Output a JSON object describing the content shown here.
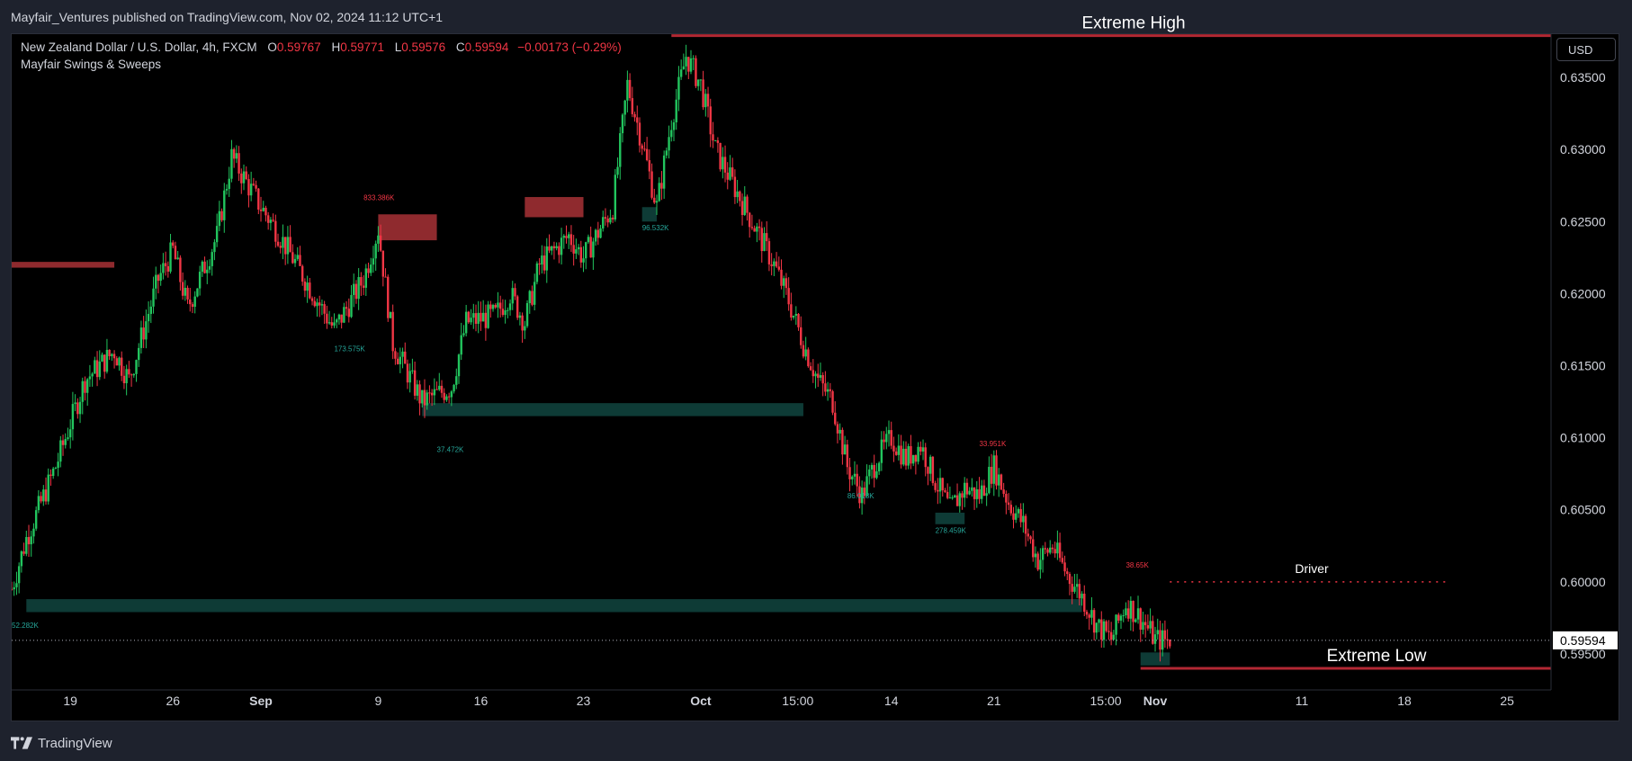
{
  "publisher_line": "Mayfair_Ventures published on TradingView.com, Nov 02, 2024 11:12 UTC+1",
  "legend": {
    "symbol": "New Zealand Dollar / U.S. Dollar, 4h, FXCM",
    "o_label": "O",
    "o": "0.59767",
    "h_label": "H",
    "h": "0.59771",
    "l_label": "L",
    "l": "0.59576",
    "c_label": "C",
    "c": "0.59594",
    "change": "−0.00173 (−0.29%)",
    "indicator": "Mayfair Swings & Sweeps"
  },
  "currency_button": "USD",
  "footer_brand": "TradingView",
  "colors": {
    "up": "#22c55e",
    "down": "#f23645",
    "bear_zone": "#8f2a2e",
    "bull_zone": "#0e3b36",
    "teal": "#26a69a"
  },
  "chart_data": {
    "type": "candlestick",
    "title": "",
    "ylim": [
      0.5925,
      0.638
    ],
    "y_ticks": [
      0.635,
      0.63,
      0.625,
      0.62,
      0.615,
      0.61,
      0.605,
      0.6,
      0.595
    ],
    "y_tick_labels": [
      "0.63500",
      "0.63000",
      "0.62500",
      "0.62000",
      "0.61500",
      "0.61000",
      "0.60500",
      "0.60000",
      "0.59500"
    ],
    "last_price": 0.59594,
    "last_price_label": "0.59594",
    "x_range": [
      "2024-08-15",
      "2024-11-28"
    ],
    "x_ticks": [
      {
        "date": "2024-08-19",
        "label": "19"
      },
      {
        "date": "2024-08-26",
        "label": "26"
      },
      {
        "date": "2024-09-01",
        "label": "Sep"
      },
      {
        "date": "2024-09-09",
        "label": "9"
      },
      {
        "date": "2024-09-16",
        "label": "16"
      },
      {
        "date": "2024-09-23",
        "label": "23"
      },
      {
        "date": "2024-10-01",
        "label": "Oct"
      },
      {
        "date": "2024-10-07T15:00",
        "label": "15:00"
      },
      {
        "date": "2024-10-14",
        "label": "14"
      },
      {
        "date": "2024-10-21",
        "label": "21"
      },
      {
        "date": "2024-10-28T15:00",
        "label": "15:00"
      },
      {
        "date": "2024-11-01",
        "label": "Nov"
      },
      {
        "date": "2024-11-11",
        "label": "11"
      },
      {
        "date": "2024-11-18",
        "label": "18"
      },
      {
        "date": "2024-11-25",
        "label": "25"
      }
    ],
    "price_path": [
      [
        "2024-08-15",
        0.5995
      ],
      [
        "2024-08-16",
        0.603
      ],
      [
        "2024-08-18",
        0.608
      ],
      [
        "2024-08-20",
        0.614
      ],
      [
        "2024-08-22",
        0.616
      ],
      [
        "2024-08-23",
        0.614
      ],
      [
        "2024-08-25",
        0.621
      ],
      [
        "2024-08-26",
        0.623
      ],
      [
        "2024-08-27",
        0.619
      ],
      [
        "2024-08-29",
        0.624
      ],
      [
        "2024-08-30",
        0.6295
      ],
      [
        "2024-09-01",
        0.626
      ],
      [
        "2024-09-02",
        0.6245
      ],
      [
        "2024-09-04",
        0.621
      ],
      [
        "2024-09-06",
        0.6175
      ],
      [
        "2024-09-08",
        0.621
      ],
      [
        "2024-09-09",
        0.6245
      ],
      [
        "2024-09-10",
        0.6165
      ],
      [
        "2024-09-11",
        0.6145
      ],
      [
        "2024-09-12",
        0.6125
      ],
      [
        "2024-09-14",
        0.6135
      ],
      [
        "2024-09-15",
        0.618
      ],
      [
        "2024-09-17",
        0.6185
      ],
      [
        "2024-09-18",
        0.62
      ],
      [
        "2024-09-19",
        0.618
      ],
      [
        "2024-09-20",
        0.622
      ],
      [
        "2024-09-22",
        0.624
      ],
      [
        "2024-09-23",
        0.6225
      ],
      [
        "2024-09-25",
        0.626
      ],
      [
        "2024-09-26",
        0.6345
      ],
      [
        "2024-09-27",
        0.6305
      ],
      [
        "2024-09-28",
        0.626
      ],
      [
        "2024-09-29",
        0.632
      ],
      [
        "2024-09-30",
        0.6365
      ],
      [
        "2024-10-01",
        0.6345
      ],
      [
        "2024-10-02",
        0.63
      ],
      [
        "2024-10-03",
        0.628
      ],
      [
        "2024-10-04",
        0.626
      ],
      [
        "2024-10-06",
        0.622
      ],
      [
        "2024-10-07",
        0.6195
      ],
      [
        "2024-10-08",
        0.6165
      ],
      [
        "2024-10-09",
        0.614
      ],
      [
        "2024-10-10",
        0.6125
      ],
      [
        "2024-10-11",
        0.608
      ],
      [
        "2024-10-12",
        0.606
      ],
      [
        "2024-10-13",
        0.6085
      ],
      [
        "2024-10-14",
        0.61
      ],
      [
        "2024-10-15",
        0.6085
      ],
      [
        "2024-10-16",
        0.6095
      ],
      [
        "2024-10-17",
        0.607
      ],
      [
        "2024-10-18",
        0.605
      ],
      [
        "2024-10-19",
        0.6065
      ],
      [
        "2024-10-20",
        0.606
      ],
      [
        "2024-10-21",
        0.608
      ],
      [
        "2024-10-22",
        0.6055
      ],
      [
        "2024-10-23",
        0.604
      ],
      [
        "2024-10-24",
        0.6015
      ],
      [
        "2024-10-25",
        0.6025
      ],
      [
        "2024-10-26",
        0.6005
      ],
      [
        "2024-10-27",
        0.599
      ],
      [
        "2024-10-28",
        0.597
      ],
      [
        "2024-10-29",
        0.596
      ],
      [
        "2024-10-30",
        0.5985
      ],
      [
        "2024-10-31",
        0.5975
      ],
      [
        "2024-11-01",
        0.596
      ],
      [
        "2024-11-02",
        0.59594
      ]
    ],
    "bearish_zones": [
      {
        "from": "2024-09-09",
        "to": "2024-09-13",
        "top": 0.6255,
        "bottom": 0.6237
      },
      {
        "from": "2024-09-19",
        "to": "2024-09-23",
        "top": 0.6267,
        "bottom": 0.6253
      },
      {
        "from": "2024-08-15",
        "to": "2024-08-22",
        "top": 0.6222,
        "bottom": 0.6218
      }
    ],
    "bullish_zones": [
      {
        "from": "2024-08-16",
        "to": "2024-10-27",
        "top": 0.5988,
        "bottom": 0.5979
      },
      {
        "from": "2024-09-12",
        "to": "2024-10-08",
        "top": 0.6124,
        "bottom": 0.6115
      },
      {
        "from": "2024-09-27",
        "to": "2024-09-28",
        "top": 0.626,
        "bottom": 0.625
      },
      {
        "from": "2024-10-17",
        "to": "2024-10-19",
        "top": 0.6048,
        "bottom": 0.604
      },
      {
        "from": "2024-10-31",
        "to": "2024-11-02",
        "top": 0.5951,
        "bottom": 0.5942
      }
    ],
    "levels": [
      {
        "label": "Extreme High",
        "price": 0.6379,
        "from": "2024-09-29",
        "to": "2024-11-28",
        "style": "thick-red"
      },
      {
        "label": "Extreme Low",
        "price": 0.594,
        "from": "2024-10-31",
        "to": "2024-11-28",
        "style": "thick-red"
      },
      {
        "label": "Driver",
        "price": 0.6,
        "from": "2024-11-02",
        "to": "2024-11-21",
        "style": "dotted-red"
      }
    ],
    "swing_annotations": [
      {
        "label": "833.386K",
        "date": "2024-09-08",
        "price": 0.6265,
        "color": "down"
      },
      {
        "label": "96.532K",
        "date": "2024-09-27",
        "price": 0.6244,
        "color": "teal"
      },
      {
        "label": "173.575K",
        "date": "2024-09-06",
        "price": 0.616,
        "color": "teal"
      },
      {
        "label": "37.472K",
        "date": "2024-09-13",
        "price": 0.609,
        "color": "teal"
      },
      {
        "label": "33.951K",
        "date": "2024-10-20",
        "price": 0.6094,
        "color": "down"
      },
      {
        "label": "86.018K",
        "date": "2024-10-11",
        "price": 0.6058,
        "color": "teal"
      },
      {
        "label": "278.459K",
        "date": "2024-10-17",
        "price": 0.6034,
        "color": "teal"
      },
      {
        "label": "38.65K",
        "date": "2024-10-30",
        "price": 0.601,
        "color": "down"
      },
      {
        "label": "52.282K",
        "date": "2024-08-15",
        "price": 0.5968,
        "color": "teal"
      }
    ]
  }
}
